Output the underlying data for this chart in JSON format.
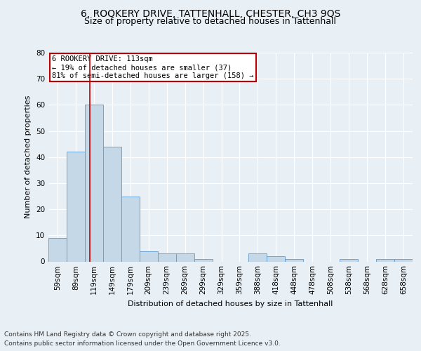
{
  "title_line1": "6, ROOKERY DRIVE, TATTENHALL, CHESTER, CH3 9QS",
  "title_line2": "Size of property relative to detached houses in Tattenhall",
  "xlabel": "Distribution of detached houses by size in Tattenhall",
  "ylabel": "Number of detached properties",
  "bins": [
    "59sqm",
    "89sqm",
    "119sqm",
    "149sqm",
    "179sqm",
    "209sqm",
    "239sqm",
    "269sqm",
    "299sqm",
    "329sqm",
    "359sqm",
    "388sqm",
    "418sqm",
    "448sqm",
    "478sqm",
    "508sqm",
    "538sqm",
    "568sqm",
    "628sqm",
    "658sqm"
  ],
  "values": [
    9,
    42,
    60,
    44,
    25,
    4,
    3,
    3,
    1,
    0,
    0,
    3,
    2,
    1,
    0,
    0,
    1,
    0,
    1,
    1
  ],
  "bar_color": "#c5d8e8",
  "bar_edge_color": "#5b9bd5",
  "vline_color": "#c00000",
  "vline_pos": 1.77,
  "annotation_text": "6 ROOKERY DRIVE: 113sqm\n← 19% of detached houses are smaller (37)\n81% of semi-detached houses are larger (158) →",
  "annotation_box_color": "white",
  "annotation_box_edge_color": "#c00000",
  "ylim": [
    0,
    80
  ],
  "yticks": [
    0,
    10,
    20,
    30,
    40,
    50,
    60,
    70,
    80
  ],
  "footer_line1": "Contains HM Land Registry data © Crown copyright and database right 2025.",
  "footer_line2": "Contains public sector information licensed under the Open Government Licence v3.0.",
  "background_color": "#e8f0f6",
  "plot_bg_color": "#e8f0f6",
  "grid_color": "white",
  "title_fontsize": 10,
  "subtitle_fontsize": 9,
  "axis_label_fontsize": 8,
  "tick_fontsize": 7.5,
  "annotation_fontsize": 7.5,
  "footer_fontsize": 6.5
}
